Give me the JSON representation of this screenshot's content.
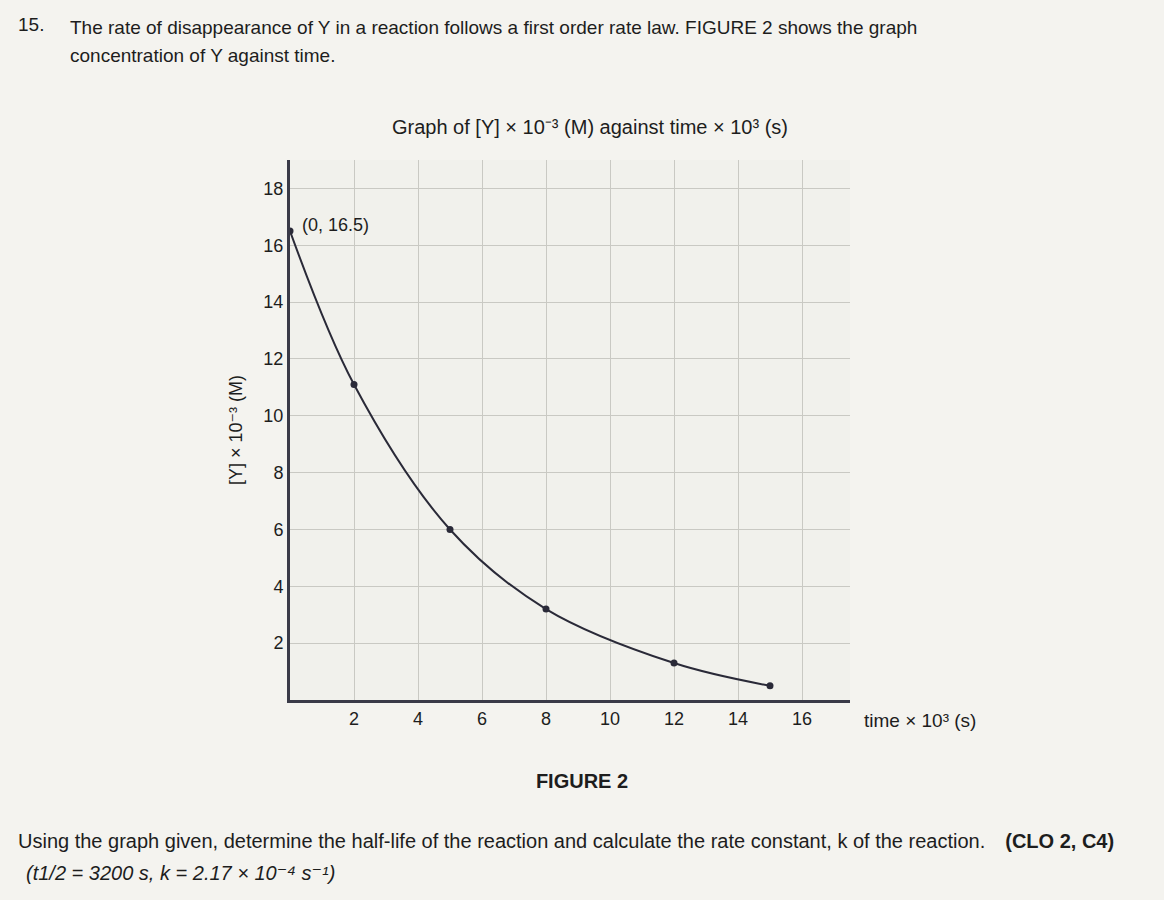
{
  "document": {
    "number": "15.",
    "question": [
      "The rate of disappearance of Y in a reaction follows a first order rate law. FIGURE 2 shows the graph",
      "concentration of Y against time."
    ],
    "caption": "FIGURE 2",
    "task": "Using the graph given, determine the half-life of the reaction and calculate the rate constant, k of the reaction.",
    "reference": "(CLO 2, C4)",
    "answer": "(t1/2 = 3200 s, k = 2.17 × 10⁻⁴ s⁻¹)"
  },
  "chart_data": {
    "type": "line",
    "title": "Graph of [Y] × 10⁻³ (M) against time × 10³ (s)",
    "x_label": "time × 10³ (s)",
    "y_label": "[Y] × 10⁻³ (M)",
    "x": [
      0,
      2,
      5,
      8,
      12,
      15
    ],
    "values": [
      16.5,
      11.1,
      6.0,
      3.2,
      1.3,
      0.5
    ],
    "color": "#2a2a38",
    "marker": "circle",
    "xlim": [
      0,
      17.5
    ],
    "ylim": [
      0,
      19
    ],
    "xticks": [
      2,
      4,
      6,
      8,
      10,
      12,
      14,
      16
    ],
    "yticks": [
      2,
      4,
      6,
      8,
      10,
      12,
      14,
      16,
      18
    ],
    "grid": true,
    "annotations": [
      {
        "text": "(0, 16.5)",
        "x": 0,
        "y": 16.5
      }
    ]
  }
}
